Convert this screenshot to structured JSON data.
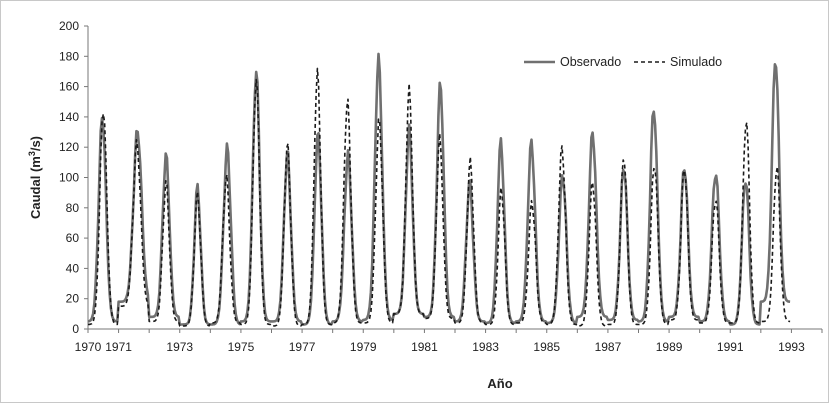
{
  "chart_data": {
    "type": "line",
    "xlabel": "Año",
    "ylabel_main": "Caudal (m",
    "ylabel_sup": "3",
    "ylabel_end": "/s)",
    "xlim": [
      1970,
      1994
    ],
    "ylim": [
      0,
      200
    ],
    "yticks": [
      0,
      20,
      40,
      60,
      80,
      100,
      120,
      140,
      160,
      180,
      200
    ],
    "xticks": [
      1970,
      1971,
      1973,
      1975,
      1977,
      1979,
      1981,
      1983,
      1985,
      1987,
      1989,
      1991,
      1993
    ],
    "xtick_labels": [
      "1970",
      "1971",
      "1973",
      "1975",
      "1977",
      "1979",
      "1981",
      "1983",
      "1985",
      "1987",
      "1989",
      "1991",
      "1993"
    ],
    "grid": false,
    "legend_position": "top-right",
    "series": [
      {
        "name": "Observado",
        "style": "solid",
        "color": "#707070",
        "annual_peaks": [
          140,
          131,
          114,
          93,
          119,
          170,
          115,
          128,
          115,
          178,
          131,
          161,
          96,
          123,
          123,
          102,
          130,
          108,
          146,
          108,
          104,
          100,
          179
        ],
        "annual_lows": [
          5,
          18,
          8,
          3,
          3,
          5,
          5,
          3,
          5,
          6,
          10,
          8,
          5,
          4,
          5,
          4,
          8,
          6,
          5,
          8,
          5,
          3,
          18
        ],
        "peak_position": [
          0.47,
          0.62,
          0.55,
          0.58,
          0.55,
          0.5,
          0.52,
          0.52,
          0.5,
          0.5,
          0.5,
          0.52,
          0.48,
          0.5,
          0.5,
          0.52,
          0.5,
          0.52,
          0.5,
          0.5,
          0.52,
          0.5,
          0.48
        ],
        "width": [
          0.4,
          0.45,
          0.38,
          0.35,
          0.4,
          0.38,
          0.38,
          0.38,
          0.4,
          0.4,
          0.38,
          0.38,
          0.38,
          0.38,
          0.4,
          0.4,
          0.4,
          0.38,
          0.4,
          0.38,
          0.4,
          0.38,
          0.38
        ]
      },
      {
        "name": "Simulado",
        "style": "dashed",
        "color": "#1a1a1a",
        "annual_peaks": [
          146,
          122,
          96,
          88,
          100,
          165,
          121,
          170,
          151,
          137,
          158,
          125,
          110,
          92,
          84,
          120,
          97,
          115,
          110,
          108,
          87,
          139,
          108
        ],
        "annual_lows": [
          3,
          15,
          5,
          2,
          4,
          3,
          2,
          3,
          4,
          4,
          10,
          7,
          4,
          3,
          4,
          3,
          2,
          3,
          3,
          6,
          4,
          4,
          5
        ],
        "peak_position": [
          0.5,
          0.6,
          0.55,
          0.58,
          0.52,
          0.5,
          0.52,
          0.5,
          0.48,
          0.52,
          0.5,
          0.5,
          0.5,
          0.52,
          0.52,
          0.5,
          0.5,
          0.52,
          0.52,
          0.5,
          0.52,
          0.52,
          0.52
        ],
        "width": [
          0.38,
          0.42,
          0.36,
          0.35,
          0.38,
          0.36,
          0.36,
          0.36,
          0.38,
          0.38,
          0.36,
          0.36,
          0.36,
          0.36,
          0.38,
          0.38,
          0.38,
          0.36,
          0.38,
          0.36,
          0.38,
          0.36,
          0.36
        ]
      }
    ]
  }
}
